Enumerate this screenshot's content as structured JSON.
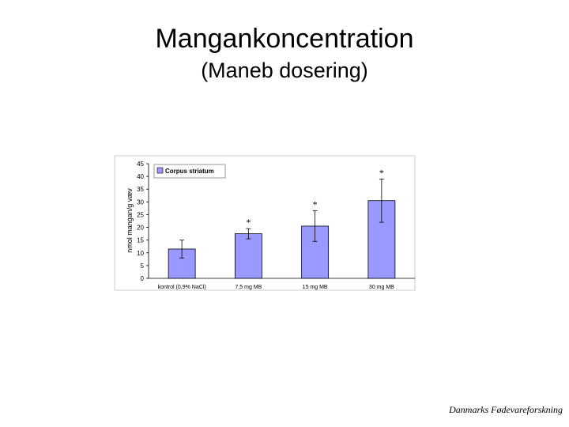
{
  "page": {
    "title": "Mangankoncentration",
    "subtitle": "(Maneb dosering)",
    "footer": "Danmarks Fødevareforskning"
  },
  "chart_data": {
    "type": "bar",
    "title": "Mangankoncentration",
    "subtitle": "(Maneb dosering)",
    "xlabel": "",
    "ylabel": "nmol mangan/g væv",
    "ylim": [
      0,
      45
    ],
    "yticks": [
      0,
      5,
      10,
      15,
      20,
      25,
      30,
      35,
      40,
      45
    ],
    "categories": [
      "kontrol (0,9% NaCl)",
      "7,5 mg MB",
      "15 mg MB",
      "30 mg MB"
    ],
    "series": [
      {
        "name": "Corpus striatum",
        "values": [
          11.5,
          17.5,
          20.5,
          30.5
        ],
        "error": [
          3.5,
          2,
          6,
          8.5
        ],
        "significance": [
          "",
          "*",
          "*",
          "*"
        ],
        "color": "#9999ff"
      }
    ],
    "legend": "top-left",
    "grid": false
  }
}
